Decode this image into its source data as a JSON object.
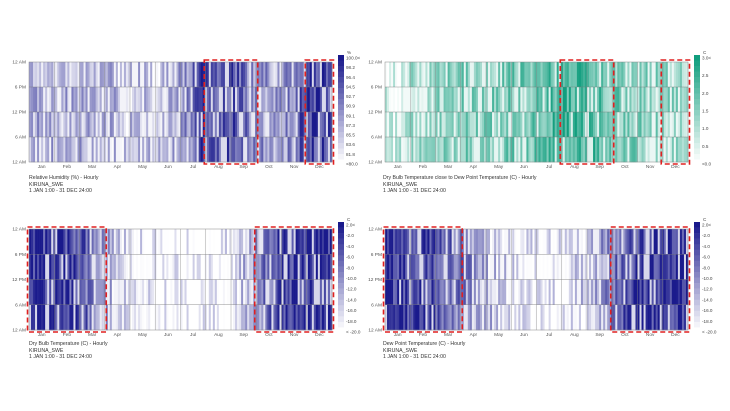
{
  "chart_data": [
    {
      "type": "heatmap",
      "title": "Relative Humidity (%) - Hourly",
      "location": "KIRUNA_SWE",
      "period": "1 JAN 1:00 - 31 DEC 24:00",
      "y_ticks": [
        "12 AM",
        "6 PM",
        "12 PM",
        "6 AM",
        "12 AM"
      ],
      "x_ticks": [
        "Jan",
        "Feb",
        "Mar",
        "Apr",
        "May",
        "Jun",
        "Jul",
        "Aug",
        "Sep",
        "Oct",
        "Nov",
        "Dec"
      ],
      "legend_unit": "%",
      "legend_labels": [
        "100.0<",
        "98.2",
        "96.4",
        "94.5",
        "92.7",
        "90.9",
        "89.1",
        "87.3",
        "85.5",
        "83.6",
        "81.8",
        "<80.0"
      ],
      "color_low": "#ffffff",
      "color_high": "#1a1a8c",
      "monthly_intensity": [
        0.35,
        0.3,
        0.35,
        0.28,
        0.25,
        0.22,
        0.35,
        0.85,
        0.75,
        0.45,
        0.4,
        0.8
      ],
      "highlight_months": [
        [
          7,
          8
        ],
        [
          11,
          11
        ]
      ],
      "highlight_color": "#e02020"
    },
    {
      "type": "heatmap",
      "title": "Dry Bulb Temperature close to Dew Point Temperature (C) - Hourly",
      "location": "KIRUNA_SWE",
      "period": "1 JAN 1:00 - 31 DEC 24:00",
      "y_ticks": [
        "12 AM",
        "6 PM",
        "12 PM",
        "6 AM",
        "12 AM"
      ],
      "x_ticks": [
        "Jan",
        "Feb",
        "Mar",
        "Apr",
        "May",
        "Jun",
        "Jul",
        "Aug",
        "Sep",
        "Oct",
        "Nov",
        "Dec"
      ],
      "legend_unit": "C",
      "legend_labels": [
        "3.0<",
        "2.5",
        "2.0",
        "1.5",
        "1.0",
        "0.5",
        "<0.0"
      ],
      "color_low": "#ffffff",
      "color_high": "#119e7e",
      "monthly_intensity": [
        0.15,
        0.3,
        0.4,
        0.5,
        0.5,
        0.55,
        0.6,
        0.8,
        0.75,
        0.55,
        0.5,
        0.4
      ],
      "highlight_months": [
        [
          7,
          8
        ],
        [
          11,
          11
        ]
      ],
      "highlight_color": "#e02020"
    },
    {
      "type": "heatmap",
      "title": "Dry Bulb Temperature (C) - Hourly",
      "location": "KIRUNA_SWE",
      "period": "1 JAN 1:00 - 31 DEC 24:00",
      "y_ticks": [
        "12 AM",
        "6 PM",
        "12 PM",
        "6 AM",
        "12 AM"
      ],
      "x_ticks": [
        "Jan",
        "Feb",
        "Mar",
        "Apr",
        "May",
        "Jun",
        "Jul",
        "Aug",
        "Sep",
        "Oct",
        "Nov",
        "Dec"
      ],
      "legend_unit": "C",
      "legend_labels": [
        "2.0<",
        "-2.0",
        "-4.0",
        "-6.0",
        "-8.0",
        "-10.0",
        "-12.0",
        "-14.0",
        "-16.0",
        "-18.0",
        "< -20.0"
      ],
      "color_low": "#ffffff",
      "color_high": "#1a1a8c",
      "monthly_intensity": [
        0.9,
        0.85,
        0.75,
        0.35,
        0.12,
        0.02,
        0.0,
        0.0,
        0.08,
        0.45,
        0.85,
        0.9
      ],
      "highlight_months": [
        [
          0,
          2
        ],
        [
          9,
          11
        ]
      ],
      "highlight_color": "#e02020"
    },
    {
      "type": "heatmap",
      "title": "Dew Point Temperature (C) - Hourly",
      "location": "KIRUNA_SWE",
      "period": "1 JAN 1:00 - 31 DEC 24:00",
      "y_ticks": [
        "12 AM",
        "6 PM",
        "12 PM",
        "6 AM",
        "12 AM"
      ],
      "x_ticks": [
        "Jan",
        "Feb",
        "Mar",
        "Apr",
        "May",
        "Jun",
        "Jul",
        "Aug",
        "Sep",
        "Oct",
        "Nov",
        "Dec"
      ],
      "legend_unit": "C",
      "legend_labels": [
        "2.0<",
        "-2.0",
        "-4.0",
        "-6.0",
        "-8.0",
        "-10.0",
        "-12.0",
        "-14.0",
        "-16.0",
        "-18.0",
        "< -20.0"
      ],
      "color_low": "#ffffff",
      "color_high": "#1a1a8c",
      "monthly_intensity": [
        0.9,
        0.85,
        0.8,
        0.55,
        0.3,
        0.12,
        0.05,
        0.08,
        0.25,
        0.55,
        0.85,
        0.9
      ],
      "highlight_months": [
        [
          0,
          2
        ],
        [
          9,
          11
        ]
      ],
      "highlight_color": "#e02020"
    }
  ]
}
